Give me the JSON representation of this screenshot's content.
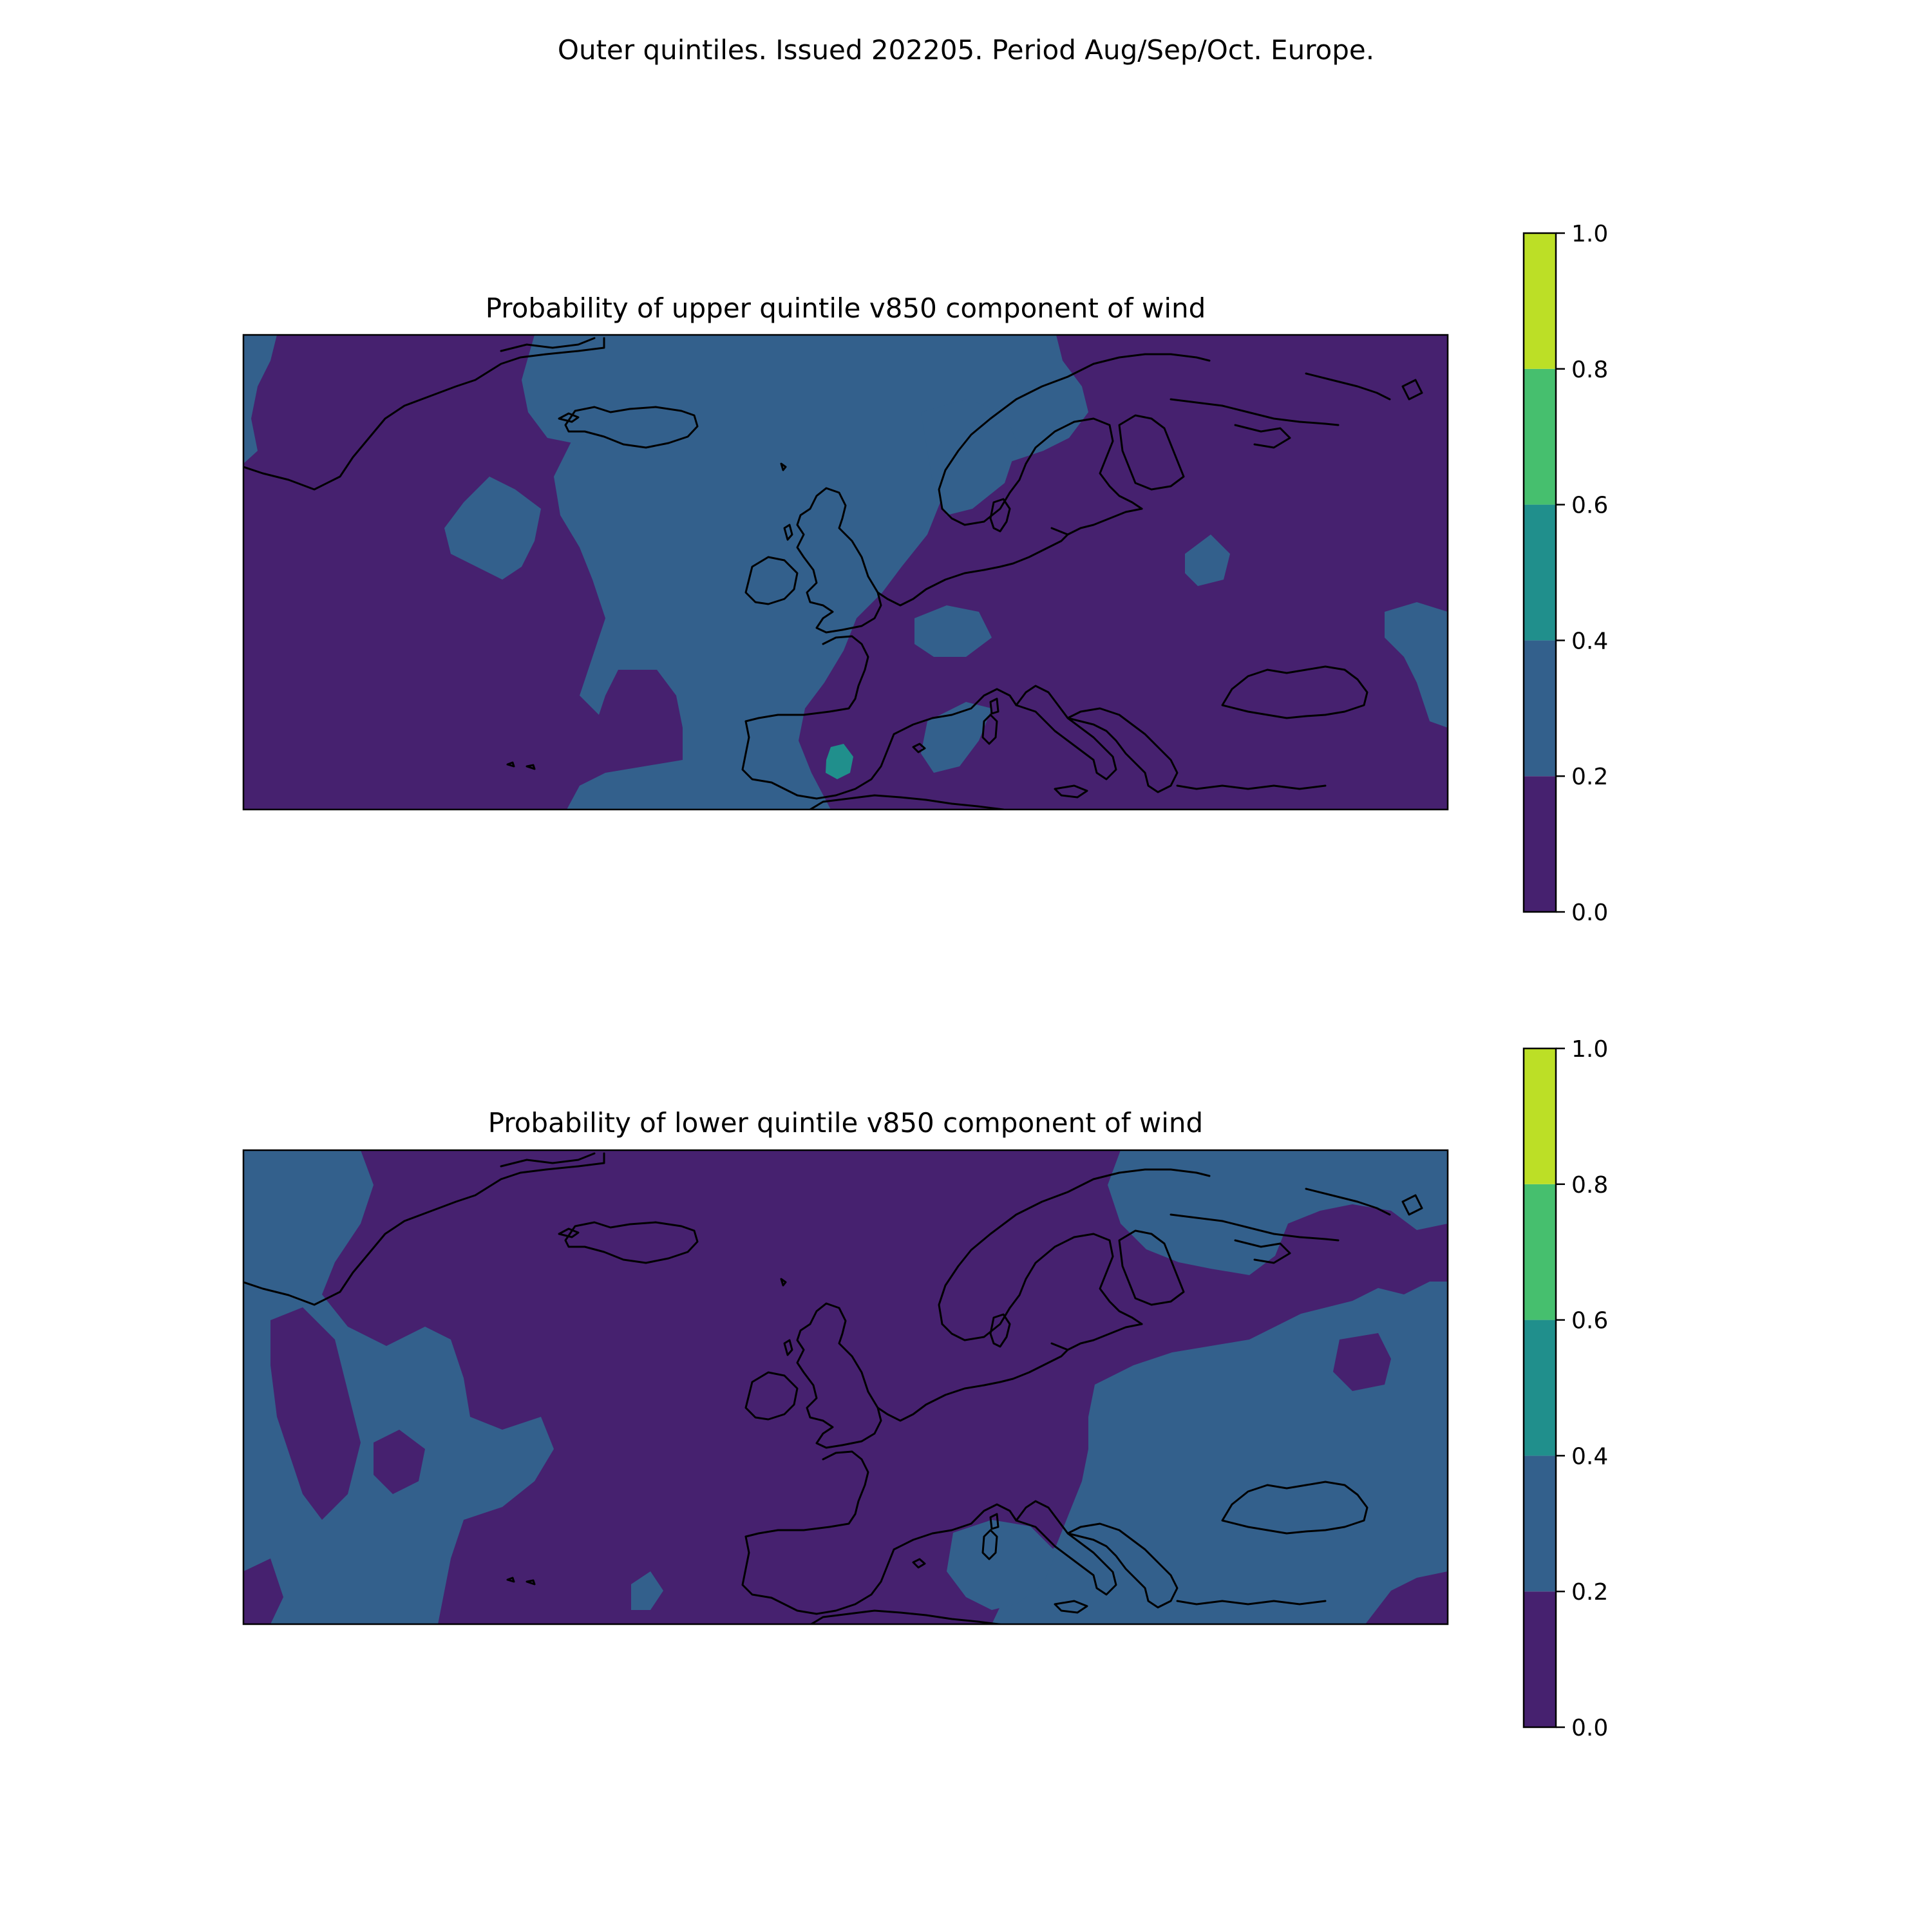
{
  "figure": {
    "suptitle": "Outer quintiles. Issued 202205. Period Aug/Sep/Oct. Europe."
  },
  "colorbar": {
    "levels": [
      0.0,
      0.2,
      0.4,
      0.6,
      0.8,
      1.0
    ],
    "tick_labels": [
      "0.0",
      "0.2",
      "0.4",
      "0.6",
      "0.8",
      "1.0"
    ],
    "colors": [
      "#46216f",
      "#33608c",
      "#208f8c",
      "#46bf6e",
      "#bcdf26"
    ]
  },
  "chart_data": [
    {
      "type": "heatmap",
      "title": "Probability of upper quintile v850 component of wind",
      "value_range": [
        0,
        1
      ],
      "background_bin": "0.0-0.2",
      "regions": [
        {
          "label": "0.2-0.4",
          "area": "Central North Atlantic, Iceland surroundings, Norwegian Sea and Iberia"
        },
        {
          "label": "0.2-0.4",
          "area": "Small patches east of Greenland and over the Caspian region"
        },
        {
          "label": "0.4-0.6",
          "area": "Small spot over southern Spain"
        }
      ]
    },
    {
      "type": "heatmap",
      "title": "Probability of lower quintile v850 component of wind",
      "value_range": [
        0,
        1
      ],
      "background_bin": "0.0-0.2",
      "regions": [
        {
          "label": "0.2-0.4",
          "area": "Western Atlantic south of Greenland"
        },
        {
          "label": "0.2-0.4",
          "area": "Eastern Europe, Black Sea and Russia"
        },
        {
          "label": "0.2-0.4",
          "area": "Northern Scandinavia / Kola and Barents coast"
        },
        {
          "label": "0.2-0.4",
          "area": "Italy and central Mediterranean"
        }
      ]
    }
  ]
}
